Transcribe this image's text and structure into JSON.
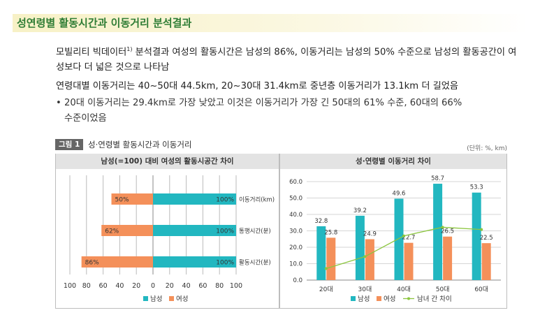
{
  "section_title": "성연령별 활동시간과 이동거리 분석결과",
  "paragraph1_a": "모빌리티 빅데이터",
  "paragraph1_sup": "1)",
  "paragraph1_b": " 분석결과 여성의 활동시간은 남성의 86%, 이동거리는 남성의 50% 수준으로 남성의 활동공간이 여성보다 더 넓은 것으로 나타남",
  "paragraph2": "연령대별 이동거리는 40~50대 44.5km, 20~30대 31.4km로 중년층 이동거리가 13.1km 더 길었음",
  "bullet_mark": "•",
  "bullet_line1": "20대 이동거리는 29.4km로 가장 낮았고 이것은 이동거리가 가장 긴 50대의 61% 수준, 60대의 66%",
  "bullet_line2": "수준이었음",
  "figure_badge": "그림 1",
  "figure_title": "성·연령별 활동시간과 이동거리",
  "unit_note": "(단위: %, km)",
  "chart_data": [
    {
      "type": "bar",
      "orientation": "horizontal",
      "title": "남성(=100) 대비 여성의 활동시공간 차이",
      "categories": [
        "이동거리(km)",
        "통행시간(분)",
        "활동시간(분)"
      ],
      "series": [
        {
          "name": "남성",
          "values": [
            100,
            100,
            100
          ],
          "labels": [
            "100%",
            "100%",
            "100%"
          ],
          "color": "#22b7c0"
        },
        {
          "name": "여성",
          "values": [
            50,
            62,
            86
          ],
          "labels": [
            "50%",
            "62%",
            "86%"
          ],
          "color": "#f4905a"
        }
      ],
      "xlim": [
        -100,
        100
      ],
      "xticks": [
        "100",
        "80",
        "60",
        "40",
        "20",
        "0",
        "20",
        "40",
        "60",
        "80",
        "100"
      ],
      "grid": true,
      "legend": "bottom"
    },
    {
      "type": "bar",
      "title": "성·연령별 이동거리 차이",
      "categories": [
        "20대",
        "30대",
        "40대",
        "50대",
        "60대"
      ],
      "series": [
        {
          "name": "남성",
          "values": [
            32.8,
            39.2,
            49.6,
            58.7,
            53.3
          ],
          "labels": [
            "32.8",
            "39.2",
            "49.6",
            "58.7",
            "53.3"
          ],
          "color": "#22b7c0",
          "kind": "bar"
        },
        {
          "name": "여성",
          "values": [
            25.8,
            24.9,
            22.7,
            26.5,
            22.5
          ],
          "labels": [
            "25.8",
            "24.9",
            "22.7",
            "26.5",
            "22.5"
          ],
          "color": "#f4905a",
          "kind": "bar"
        },
        {
          "name": "남녀 간 차이",
          "values": [
            7.0,
            14.3,
            26.9,
            32.2,
            30.8
          ],
          "color": "#8cc63f",
          "kind": "line"
        }
      ],
      "ylim": [
        0,
        60
      ],
      "yticks": [
        "0.0",
        "10.0",
        "20.0",
        "30.0",
        "40.0",
        "50.0",
        "60.0"
      ],
      "grid": true,
      "legend": "bottom"
    }
  ]
}
